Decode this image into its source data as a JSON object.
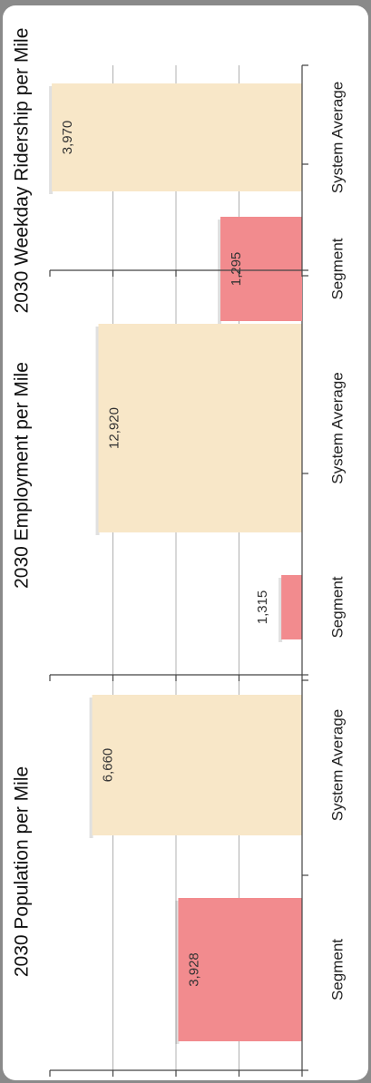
{
  "colors": {
    "segment": "#f28b8e",
    "system_average": "#f8e7c8",
    "grid": "#b0b0b0",
    "axis": "#444444"
  },
  "chart_data": [
    {
      "type": "bar",
      "title": "2030 Population per Mile",
      "categories": [
        "Segment",
        "System Average"
      ],
      "values": [
        3928,
        6660
      ],
      "value_labels": [
        "3,928",
        "6,660"
      ],
      "ylim": [
        0,
        8000
      ],
      "grid": true
    },
    {
      "type": "bar",
      "title": "2030 Employment per Mile",
      "categories": [
        "Segment",
        "System Average"
      ],
      "values": [
        1315,
        12920
      ],
      "value_labels": [
        "1,315",
        "12,920"
      ],
      "ylim": [
        0,
        16000
      ],
      "grid": true
    },
    {
      "type": "bar",
      "title": "2030 Weekday Ridership per Mile",
      "categories": [
        "Segment",
        "System Average"
      ],
      "values": [
        1295,
        3970
      ],
      "value_labels": [
        "1,295",
        "3,970"
      ],
      "ylim": [
        0,
        4000
      ],
      "grid": true
    }
  ]
}
